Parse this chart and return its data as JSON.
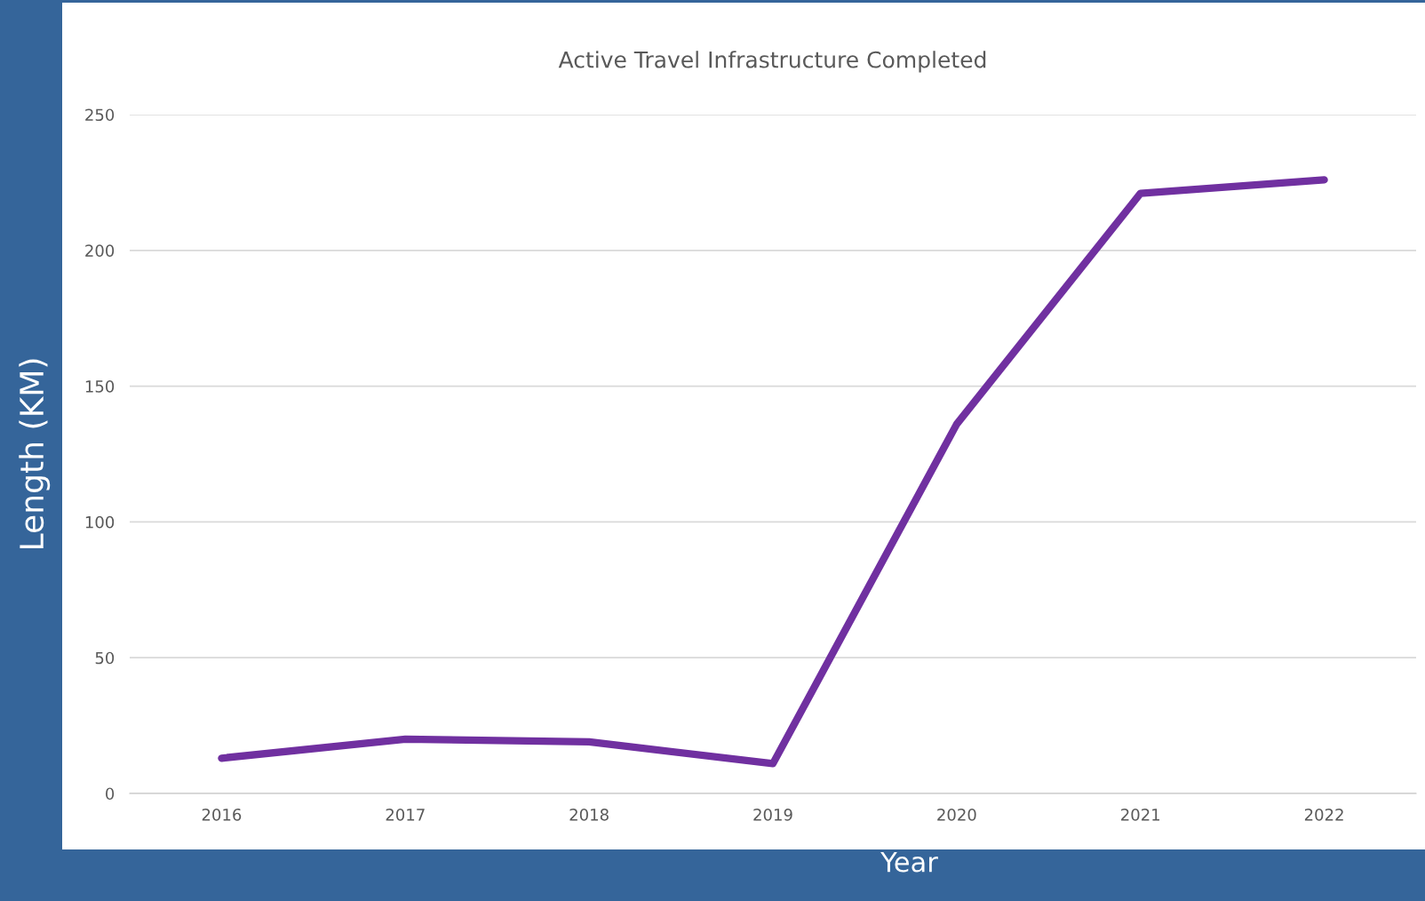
{
  "chart_data": {
    "type": "line",
    "title": "Active Travel Infrastructure Completed",
    "xlabel": "Year",
    "ylabel": "Length (KM)",
    "categories": [
      "2016",
      "2017",
      "2018",
      "2019",
      "2020",
      "2021",
      "2022"
    ],
    "series": [
      {
        "color": "#7030a0",
        "values": [
          13,
          20,
          19,
          11,
          136,
          221,
          226
        ]
      }
    ],
    "ylim": [
      0,
      250
    ],
    "yticks": [
      0,
      50,
      100,
      150,
      200,
      250
    ],
    "grid": "y",
    "marker": "none",
    "line_style": "solid"
  }
}
